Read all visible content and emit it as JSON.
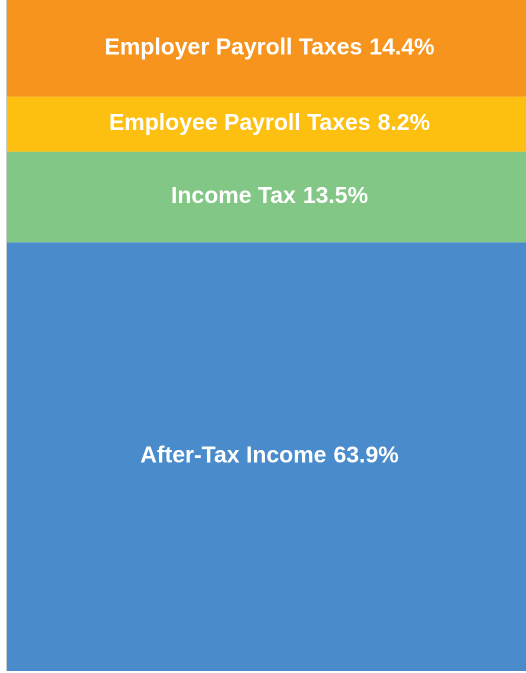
{
  "chart_data": {
    "type": "bar",
    "stacked": true,
    "ylim": [
      0,
      100
    ],
    "series": [
      {
        "name": "After-Tax Income",
        "color": "#4a8ccb",
        "values": [
          63.9
        ],
        "value_labels": [
          "63.9%"
        ]
      },
      {
        "name": "Income Tax",
        "color": "#82c785",
        "values": [
          13.5
        ],
        "value_labels": [
          "13.5%"
        ]
      },
      {
        "name": "Employee Payroll Taxes",
        "color": "#fdc010",
        "values": [
          8.2
        ],
        "value_labels": [
          "8.2%"
        ]
      },
      {
        "name": "Employer Payroll Taxes",
        "color": "#f7941d",
        "values": [
          14.4
        ],
        "value_labels": [
          "14.4%"
        ]
      }
    ]
  }
}
